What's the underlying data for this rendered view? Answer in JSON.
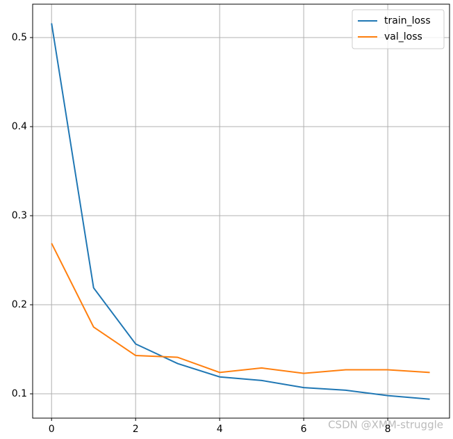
{
  "chart_data": {
    "type": "line",
    "x": [
      0,
      1,
      2,
      3,
      4,
      5,
      6,
      7,
      8,
      9
    ],
    "series": [
      {
        "name": "train_loss",
        "color": "#1f77b4",
        "values": [
          0.516,
          0.219,
          0.156,
          0.134,
          0.119,
          0.115,
          0.107,
          0.104,
          0.098,
          0.094
        ]
      },
      {
        "name": "val_loss",
        "color": "#ff7f0e",
        "values": [
          0.269,
          0.175,
          0.143,
          0.141,
          0.124,
          0.129,
          0.123,
          0.127,
          0.127,
          0.124
        ]
      }
    ],
    "xlim": [
      -0.45,
      9.47
    ],
    "xticks": [
      0,
      2,
      4,
      6,
      8
    ],
    "ylim": [
      0.0727,
      0.5375
    ],
    "yticks": [
      0.1,
      0.2,
      0.3,
      0.4,
      0.5
    ],
    "grid": true,
    "legend": "upper right",
    "watermark": "CSDN @XMM-struggle"
  }
}
